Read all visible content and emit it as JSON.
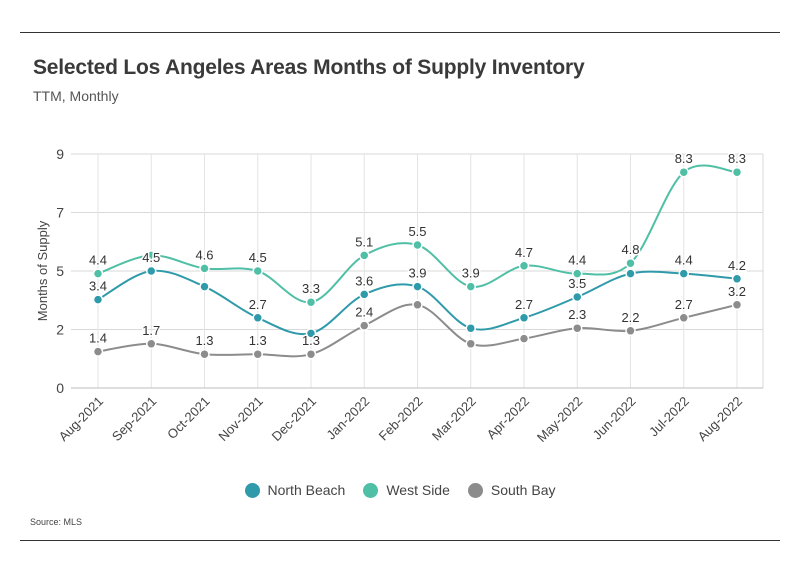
{
  "title": "Selected Los Angeles Areas Months of Supply Inventory",
  "subtitle": "TTM, Monthly",
  "source": "Source: MLS",
  "chart_data": {
    "type": "line",
    "ylabel": "Months of Supply",
    "ylim": [
      0,
      9
    ],
    "yticks": [
      {
        "value": 0,
        "label": "0"
      },
      {
        "value": 2.25,
        "label": "2"
      },
      {
        "value": 4.5,
        "label": "5"
      },
      {
        "value": 6.75,
        "label": "7"
      },
      {
        "value": 9,
        "label": "9"
      }
    ],
    "grid": true,
    "legend_position": "bottom",
    "categories": [
      "Aug-2021",
      "Sep-2021",
      "Oct-2021",
      "Nov-2021",
      "Dec-2021",
      "Jan-2022",
      "Feb-2022",
      "Mar-2022",
      "Apr-2022",
      "May-2022",
      "Jun-2022",
      "Jul-2022",
      "Aug-2022"
    ],
    "series": [
      {
        "name": "North Beach",
        "color": "#2f9aaa",
        "values": [
          3.4,
          4.5,
          3.9,
          2.7,
          2.1,
          3.6,
          3.9,
          2.3,
          2.7,
          3.5,
          4.4,
          4.4,
          4.2
        ],
        "labels": [
          "3.4",
          "4.5",
          "",
          "2.7",
          "",
          "3.6",
          "3.9",
          "",
          "2.7",
          "3.5",
          "",
          "4.4",
          "4.2"
        ]
      },
      {
        "name": "West Side",
        "color": "#4fbfa6",
        "values": [
          4.4,
          5.1,
          4.6,
          4.5,
          3.3,
          5.1,
          5.5,
          3.9,
          4.7,
          4.4,
          4.8,
          8.3,
          8.3
        ],
        "labels": [
          "4.4",
          "",
          "4.6",
          "4.5",
          "3.3",
          "5.1",
          "5.5",
          "3.9",
          "4.7",
          "4.4",
          "4.8",
          "8.3",
          "8.3"
        ]
      },
      {
        "name": "South Bay",
        "color": "#8c8c8c",
        "values": [
          1.4,
          1.7,
          1.3,
          1.3,
          1.3,
          2.4,
          3.2,
          1.7,
          1.9,
          2.3,
          2.2,
          2.7,
          3.2
        ],
        "labels": [
          "1.4",
          "1.7",
          "1.3",
          "1.3",
          "1.3",
          "2.4",
          "",
          "",
          "",
          "2.3",
          "2.2",
          "2.7",
          "3.2"
        ]
      }
    ],
    "data_labels": [
      {
        "series": 0,
        "index": 0,
        "text": "3.4"
      },
      {
        "series": 0,
        "index": 1,
        "text": "4.5"
      },
      {
        "series": 0,
        "index": 3,
        "text": "2.7"
      },
      {
        "series": 0,
        "index": 5,
        "text": "3.6"
      },
      {
        "series": 0,
        "index": 6,
        "text": "3.9"
      },
      {
        "series": 0,
        "index": 8,
        "text": "2.7"
      },
      {
        "series": 0,
        "index": 9,
        "text": "3.5"
      },
      {
        "series": 0,
        "index": 11,
        "text": "4.4"
      },
      {
        "series": 0,
        "index": 12,
        "text": "4.2"
      },
      {
        "series": 1,
        "index": 0,
        "text": "4.4"
      },
      {
        "series": 1,
        "index": 2,
        "text": "4.6"
      },
      {
        "series": 1,
        "index": 3,
        "text": "4.5"
      },
      {
        "series": 1,
        "index": 4,
        "text": "3.3"
      },
      {
        "series": 1,
        "index": 5,
        "text": "5.1"
      },
      {
        "series": 1,
        "index": 6,
        "text": "5.5"
      },
      {
        "series": 1,
        "index": 7,
        "text": "3.9"
      },
      {
        "series": 1,
        "index": 8,
        "text": "4.7"
      },
      {
        "series": 1,
        "index": 9,
        "text": "4.4"
      },
      {
        "series": 1,
        "index": 10,
        "text": "4.8"
      },
      {
        "series": 1,
        "index": 11,
        "text": "8.3"
      },
      {
        "series": 1,
        "index": 12,
        "text": "8.3"
      },
      {
        "series": 2,
        "index": 0,
        "text": "1.4"
      },
      {
        "series": 2,
        "index": 1,
        "text": "1.7"
      },
      {
        "series": 2,
        "index": 2,
        "text": "1.3"
      },
      {
        "series": 2,
        "index": 3,
        "text": "1.3"
      },
      {
        "series": 2,
        "index": 4,
        "text": "1.3"
      },
      {
        "series": 2,
        "index": 5,
        "text": "2.4"
      },
      {
        "series": 2,
        "index": 9,
        "text": "2.3"
      },
      {
        "series": 2,
        "index": 10,
        "text": "2.2"
      },
      {
        "series": 2,
        "index": 11,
        "text": "2.7"
      },
      {
        "series": 2,
        "index": 12,
        "text": "3.2"
      }
    ]
  }
}
